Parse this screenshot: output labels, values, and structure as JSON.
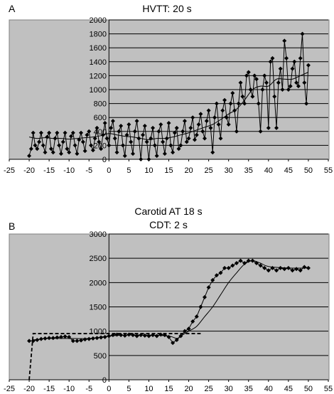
{
  "chart_data": [
    {
      "panel": "A",
      "type": "line",
      "title": "HVTT: 20 s",
      "xlim": [
        -25,
        55
      ],
      "ylim": [
        0,
        2000
      ],
      "xticks": [
        -25,
        -20,
        -15,
        -10,
        -5,
        0,
        5,
        10,
        15,
        20,
        25,
        30,
        35,
        40,
        45,
        50,
        55
      ],
      "yticks": [
        0,
        200,
        400,
        600,
        800,
        1000,
        1200,
        1400,
        1600,
        1800,
        2000
      ],
      "grid": "horizontal",
      "colors": {
        "plot_bg": "#c0c0c0",
        "line": "#000000"
      },
      "series": [
        {
          "style": "line-markers",
          "x": [
            -20,
            -19.5,
            -19,
            -18.5,
            -18,
            -17.5,
            -17,
            -16.5,
            -16,
            -15.5,
            -15,
            -14.5,
            -14,
            -13.5,
            -13,
            -12.5,
            -12,
            -11.5,
            -11,
            -10.5,
            -10,
            -9.5,
            -9,
            -8.5,
            -8,
            -7.5,
            -7,
            -6.5,
            -6,
            -5.5,
            -5,
            -4.5,
            -4,
            -3.5,
            -3,
            -2.5,
            -2,
            -1.5,
            -1,
            -0.5,
            0,
            0.5,
            1,
            1.5,
            2,
            2.5,
            3,
            3.5,
            4,
            4.5,
            5,
            5.5,
            6,
            6.5,
            7,
            7.5,
            8,
            8.5,
            9,
            9.5,
            10,
            10.5,
            11,
            11.5,
            12,
            12.5,
            13,
            13.5,
            14,
            14.5,
            15,
            15.5,
            16,
            16.5,
            17,
            17.5,
            18,
            18.5,
            19,
            19.5,
            20,
            20.5,
            21,
            21.5,
            22,
            22.5,
            23,
            23.5,
            24,
            24.5,
            25,
            25.5,
            26,
            26.5,
            27,
            27.5,
            28,
            28.5,
            29,
            29.5,
            30,
            30.5,
            31,
            31.5,
            32,
            32.5,
            33,
            33.5,
            34,
            34.5,
            35,
            35.5,
            36,
            36.5,
            37,
            37.5,
            38,
            38.5,
            39,
            39.5,
            40,
            40.5,
            41,
            41.5,
            42,
            42.5,
            43,
            43.5,
            44,
            44.5,
            45,
            45.5,
            46,
            46.5,
            47,
            47.5,
            48,
            48.5,
            49,
            49.5,
            50
          ],
          "y": [
            50,
            150,
            380,
            200,
            150,
            250,
            380,
            200,
            100,
            320,
            380,
            150,
            100,
            300,
            380,
            200,
            80,
            250,
            380,
            150,
            100,
            330,
            380,
            200,
            80,
            280,
            380,
            250,
            120,
            350,
            400,
            200,
            130,
            300,
            450,
            250,
            150,
            350,
            520,
            300,
            200,
            450,
            550,
            300,
            100,
            400,
            480,
            200,
            50,
            350,
            500,
            250,
            80,
            400,
            550,
            300,
            0,
            350,
            480,
            250,
            0,
            300,
            450,
            200,
            50,
            400,
            500,
            250,
            80,
            300,
            520,
            200,
            100,
            380,
            450,
            150,
            200,
            400,
            550,
            250,
            300,
            450,
            600,
            280,
            350,
            500,
            650,
            400,
            300,
            550,
            700,
            450,
            100,
            600,
            800,
            500,
            300,
            700,
            850,
            600,
            500,
            800,
            950,
            700,
            400,
            800,
            1100,
            900,
            800,
            1200,
            1250,
            1000,
            900,
            1200,
            1150,
            800,
            400,
            1000,
            1200,
            1100,
            450,
            1400,
            1450,
            900,
            450,
            1100,
            1300,
            1000,
            1700,
            1450,
            1000,
            1050,
            1300,
            1400,
            1100,
            1050,
            1450,
            1800,
            1100,
            800,
            1350
          ]
        },
        {
          "style": "smooth-line",
          "x": [
            -20,
            -18,
            -16,
            -14,
            -12,
            -10,
            -8,
            -6,
            -4,
            -2,
            0,
            2,
            4,
            6,
            8,
            10,
            12,
            14,
            16,
            18,
            20,
            22,
            24,
            26,
            28,
            30,
            32,
            34,
            36,
            38,
            40,
            42,
            44,
            46,
            48,
            50
          ],
          "y": [
            320,
            300,
            310,
            300,
            300,
            290,
            300,
            310,
            320,
            340,
            370,
            350,
            330,
            320,
            300,
            280,
            300,
            300,
            320,
            350,
            380,
            420,
            460,
            500,
            570,
            650,
            720,
            850,
            1000,
            1050,
            1050,
            1150,
            1150,
            1150,
            1200,
            1250
          ]
        }
      ]
    },
    {
      "panel": "B",
      "type": "line",
      "title": "Carotid AT 18 s",
      "subtitle": "CDT: 2 s",
      "xlim": [
        -25,
        55
      ],
      "ylim": [
        0,
        3000
      ],
      "xticks": [
        -25,
        -20,
        -15,
        -10,
        -5,
        0,
        5,
        10,
        15,
        20,
        25,
        30,
        35,
        40,
        45,
        50,
        55
      ],
      "yticks": [
        0,
        500,
        1000,
        1500,
        2000,
        2500,
        3000
      ],
      "grid": "horizontal",
      "colors": {
        "plot_bg": "#c0c0c0",
        "line": "#000000"
      },
      "series": [
        {
          "style": "line-markers",
          "x": [
            -20,
            -19,
            -18,
            -17,
            -16,
            -15,
            -14,
            -13,
            -12,
            -11,
            -10,
            -9,
            -8,
            -7,
            -6,
            -5,
            -4,
            -3,
            -2,
            -1,
            0,
            1,
            2,
            3,
            4,
            5,
            6,
            7,
            8,
            9,
            10,
            11,
            12,
            13,
            14,
            15,
            16,
            17,
            18,
            19,
            20,
            21,
            22,
            23,
            24,
            25,
            26,
            27,
            28,
            29,
            30,
            31,
            32,
            33,
            34,
            35,
            36,
            37,
            38,
            39,
            40,
            41,
            42,
            43,
            44,
            45,
            46,
            47,
            48,
            49,
            50
          ],
          "y": [
            800,
            800,
            820,
            840,
            850,
            860,
            860,
            870,
            880,
            890,
            880,
            800,
            800,
            810,
            830,
            840,
            850,
            860,
            870,
            880,
            900,
            920,
            930,
            920,
            910,
            930,
            920,
            900,
            920,
            910,
            900,
            920,
            900,
            930,
            920,
            880,
            760,
            820,
            900,
            1000,
            1050,
            1200,
            1300,
            1500,
            1700,
            1900,
            2050,
            2150,
            2200,
            2300,
            2300,
            2350,
            2400,
            2450,
            2400,
            2450,
            2450,
            2400,
            2350,
            2300,
            2250,
            2300,
            2250,
            2300,
            2280,
            2300,
            2250,
            2280,
            2250,
            2320,
            2300
          ]
        },
        {
          "style": "smooth-line",
          "x": [
            -19,
            -15,
            -10,
            -5,
            0,
            5,
            10,
            15,
            17,
            18,
            20,
            22,
            24,
            26,
            28,
            30,
            32,
            34,
            36,
            38,
            40,
            45,
            50
          ],
          "y": [
            820,
            850,
            850,
            850,
            900,
            920,
            920,
            900,
            850,
            900,
            1000,
            1100,
            1300,
            1500,
            1750,
            2000,
            2200,
            2380,
            2450,
            2400,
            2330,
            2300,
            2300
          ]
        },
        {
          "style": "dashed-fit",
          "x": [
            -20,
            -19,
            23
          ],
          "y": [
            0,
            950,
            950
          ]
        }
      ]
    }
  ],
  "labels": {
    "panel_a": "A",
    "panel_b": "B",
    "title_a": "HVTT: 20 s",
    "title_b_line1": "Carotid AT 18 s",
    "title_b_line2": "CDT: 2 s"
  }
}
